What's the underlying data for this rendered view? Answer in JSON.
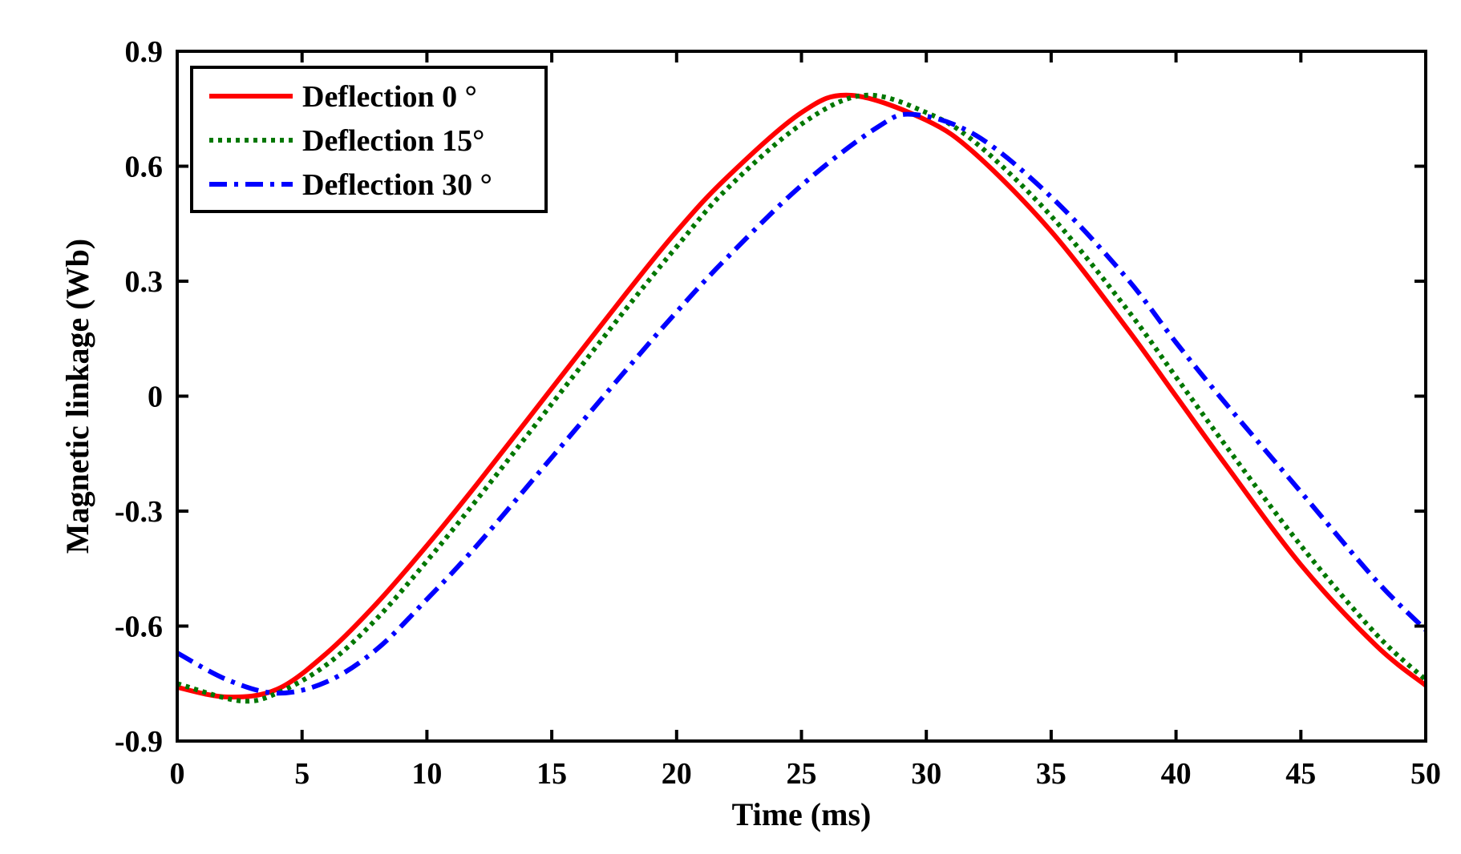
{
  "chart_data": {
    "type": "line",
    "title": "",
    "xlabel": "Time (ms)",
    "ylabel": "Magnetic linkage (Wb)",
    "xlim": [
      0,
      50
    ],
    "ylim": [
      -0.9,
      0.9
    ],
    "xticks": [
      0,
      5,
      10,
      15,
      20,
      25,
      30,
      35,
      40,
      45,
      50
    ],
    "xtick_labels": [
      "0",
      "5",
      "10",
      "15",
      "20",
      "25",
      "30",
      "35",
      "40",
      "45",
      "50"
    ],
    "yticks": [
      -0.9,
      -0.6,
      -0.3,
      0,
      0.3,
      0.6,
      0.9
    ],
    "ytick_labels": [
      "-0.9",
      "-0.6",
      "-0.3",
      "0",
      "0.3",
      "0.6",
      "0.9"
    ],
    "grid": false,
    "legend_position": "top-left",
    "series": [
      {
        "name": "Deflection 0 °",
        "color": "#ff0000",
        "dash": "solid",
        "x": [
          0,
          2,
          4,
          6,
          8,
          10,
          12,
          15,
          18,
          20,
          22,
          25,
          27,
          30,
          32,
          35,
          38,
          40,
          42,
          45,
          48,
          50
        ],
        "y": [
          -0.76,
          -0.785,
          -0.765,
          -0.67,
          -0.54,
          -0.39,
          -0.23,
          0.02,
          0.27,
          0.43,
          0.57,
          0.74,
          0.785,
          0.72,
          0.63,
          0.43,
          0.18,
          0.0,
          -0.18,
          -0.44,
          -0.65,
          -0.755
        ]
      },
      {
        "name": "Deflection 15°",
        "color": "#007700",
        "dash": "dotted",
        "x": [
          0,
          2.5,
          4,
          6,
          8,
          10,
          12,
          15,
          18,
          20,
          22,
          25,
          27.5,
          30,
          32,
          35,
          38,
          40,
          42,
          45,
          48,
          50
        ],
        "y": [
          -0.75,
          -0.795,
          -0.775,
          -0.7,
          -0.58,
          -0.43,
          -0.27,
          -0.02,
          0.23,
          0.39,
          0.54,
          0.71,
          0.785,
          0.74,
          0.66,
          0.47,
          0.23,
          0.05,
          -0.13,
          -0.39,
          -0.62,
          -0.74
        ]
      },
      {
        "name": "Deflection 30 °",
        "color": "#0000ff",
        "dash": "dashdot",
        "x": [
          0,
          2,
          4,
          6,
          8,
          10,
          12,
          15,
          18,
          20,
          22,
          25,
          28,
          29.5,
          32,
          35,
          38,
          40,
          42,
          45,
          48,
          50
        ],
        "y": [
          -0.67,
          -0.74,
          -0.775,
          -0.745,
          -0.66,
          -0.53,
          -0.39,
          -0.16,
          0.07,
          0.22,
          0.36,
          0.55,
          0.7,
          0.735,
          0.68,
          0.52,
          0.31,
          0.14,
          -0.02,
          -0.25,
          -0.48,
          -0.61
        ]
      }
    ]
  }
}
